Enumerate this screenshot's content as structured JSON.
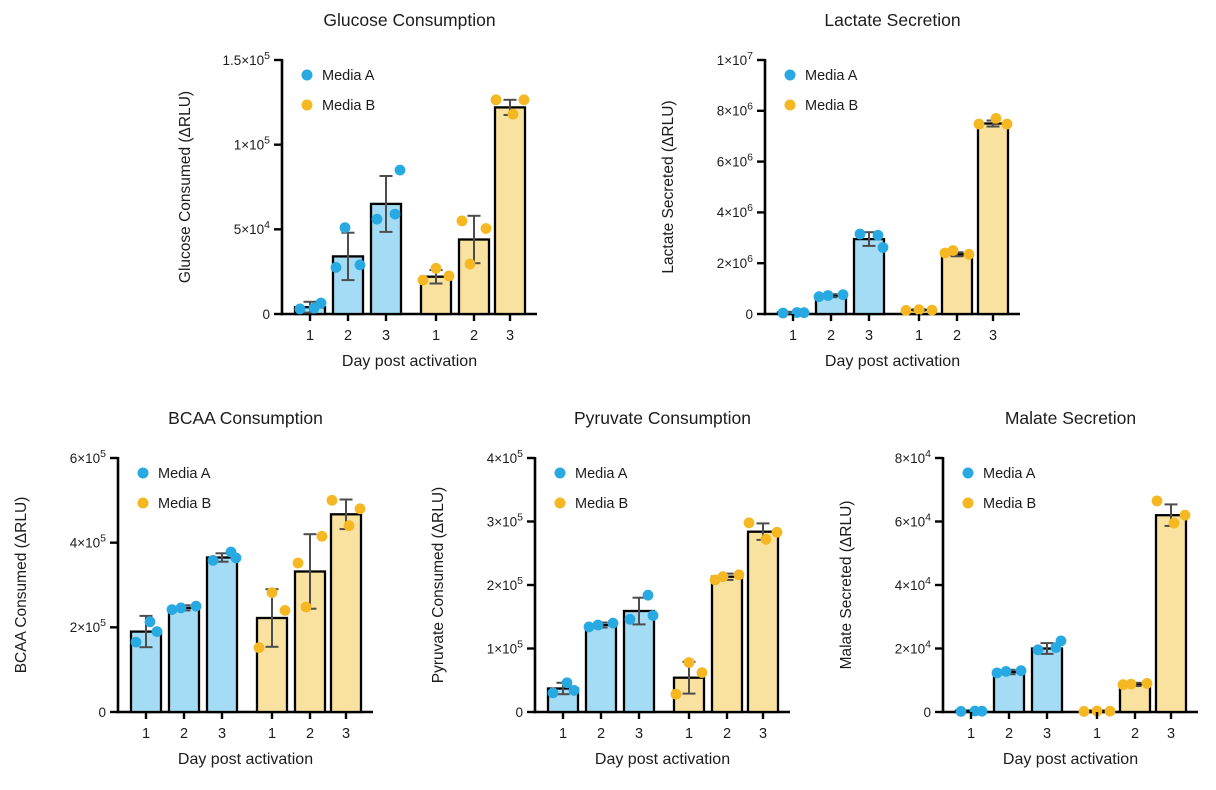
{
  "figure": {
    "background": "#FFFFFF",
    "x_axis_title": "Day post activation",
    "group_labels": [
      "Media A",
      "Media B"
    ],
    "days": [
      "1",
      "2",
      "3"
    ]
  },
  "colors": {
    "media_a_point": "#29A9E1",
    "media_a_fill": "#A5DCF5",
    "media_b_point": "#F5B722",
    "media_b_fill": "#F9E2A0",
    "axis": "#000000",
    "bar_stroke": "#000000",
    "error": "#4D4D4D",
    "text": "#1C1C1C"
  },
  "chart_data": [
    {
      "id": "glucose-consumption",
      "type": "bar",
      "title": "Glucose Consumption",
      "xlabel": "Day post activation",
      "ylabel": "Glucose Consumed (ΔRLU)",
      "ylim": [
        0,
        150000
      ],
      "grid": false,
      "legend_position": "top-left",
      "yticks": [
        {
          "v": 0,
          "label": "0"
        },
        {
          "v": 50000,
          "label": "5×10^4"
        },
        {
          "v": 100000,
          "label": "1×10^5"
        },
        {
          "v": 150000,
          "label": "1.5×10^5"
        }
      ],
      "categories": [
        "1",
        "2",
        "3"
      ],
      "series": [
        {
          "name": "Media A",
          "means": [
            4000,
            34000,
            65000
          ],
          "sd": [
            3200,
            14000,
            16500
          ],
          "points": [
            [
              3000,
              3500,
              6500
            ],
            [
              27500,
              29000,
              51000
            ],
            [
              56000,
              59000,
              85000
            ]
          ]
        },
        {
          "name": "Media B",
          "means": [
            22000,
            44000,
            122000
          ],
          "sd": [
            4000,
            14000,
            4500
          ],
          "points": [
            [
              20000,
              27000,
              22500
            ],
            [
              55000,
              50500,
              29500
            ],
            [
              126500,
              118000,
              126500
            ]
          ]
        }
      ]
    },
    {
      "id": "lactate-secretion",
      "type": "bar",
      "title": "Lactate Secretion",
      "xlabel": "Day post activation",
      "ylabel": "Lactate Secreted (ΔRLU)",
      "ylim": [
        0,
        10000000
      ],
      "grid": false,
      "legend_position": "top-left",
      "yticks": [
        {
          "v": 0,
          "label": "0"
        },
        {
          "v": 2000000,
          "label": "2×10^6"
        },
        {
          "v": 4000000,
          "label": "4×10^6"
        },
        {
          "v": 6000000,
          "label": "6×10^6"
        },
        {
          "v": 8000000,
          "label": "8×10^6"
        },
        {
          "v": 10000000,
          "label": "1×10^7"
        }
      ],
      "categories": [
        "1",
        "2",
        "3"
      ],
      "series": [
        {
          "name": "Media A",
          "means": [
            60000,
            720000,
            2950000
          ],
          "sd": [
            25000,
            60000,
            270000
          ],
          "points": [
            [
              40000,
              60000,
              50000
            ],
            [
              680000,
              760000,
              730000
            ],
            [
              3150000,
              3100000,
              2620000
            ]
          ]
        },
        {
          "name": "Media B",
          "means": [
            160000,
            2350000,
            7500000
          ],
          "sd": [
            30000,
            80000,
            120000
          ],
          "points": [
            [
              140000,
              170000,
              155000
            ],
            [
              2400000,
              2350000,
              2500000
            ],
            [
              7480000,
              7700000,
              7480000
            ]
          ]
        }
      ]
    },
    {
      "id": "bcaa-consumption",
      "type": "bar",
      "title": "BCAA Consumption",
      "xlabel": "Day post activation",
      "ylabel": "BCAA Consumed (ΔRLU)",
      "ylim": [
        0,
        600000
      ],
      "grid": false,
      "legend_position": "top-left",
      "yticks": [
        {
          "v": 0,
          "label": "0"
        },
        {
          "v": 200000,
          "label": "2×10^5"
        },
        {
          "v": 400000,
          "label": "4×10^5"
        },
        {
          "v": 600000,
          "label": "6×10^5"
        }
      ],
      "categories": [
        "1",
        "2",
        "3"
      ],
      "series": [
        {
          "name": "Media A",
          "means": [
            190000,
            246000,
            365000
          ],
          "sd": [
            37000,
            6000,
            10000
          ],
          "points": [
            [
              165000,
              213000,
              190000
            ],
            [
              242000,
              250000,
              246000
            ],
            [
              358000,
              378000,
              364000
            ]
          ]
        },
        {
          "name": "Media B",
          "means": [
            222000,
            332000,
            467000
          ],
          "sd": [
            68000,
            88000,
            35000
          ],
          "points": [
            [
              152000,
              282000,
              240000
            ],
            [
              352000,
              415000,
              248000
            ],
            [
              500000,
              440000,
              480000
            ]
          ]
        }
      ]
    },
    {
      "id": "pyruvate-consumption",
      "type": "bar",
      "title": "Pyruvate Consumption",
      "xlabel": "Day post activation",
      "ylabel": "Pyruvate Consumed (ΔRLU)",
      "ylim": [
        0,
        400000
      ],
      "grid": false,
      "legend_position": "top-left",
      "yticks": [
        {
          "v": 0,
          "label": "0"
        },
        {
          "v": 100000,
          "label": "1×10^5"
        },
        {
          "v": 200000,
          "label": "2×10^5"
        },
        {
          "v": 300000,
          "label": "3×10^5"
        },
        {
          "v": 400000,
          "label": "4×10^5"
        }
      ],
      "categories": [
        "1",
        "2",
        "3"
      ],
      "series": [
        {
          "name": "Media A",
          "means": [
            37000,
            137000,
            159000
          ],
          "sd": [
            9000,
            4000,
            21000
          ],
          "points": [
            [
              30000,
              46000,
              34000
            ],
            [
              134000,
              140000,
              137000
            ],
            [
              146000,
              184000,
              152000
            ]
          ]
        },
        {
          "name": "Media B",
          "means": [
            54000,
            213000,
            284000
          ],
          "sd": [
            25000,
            5000,
            13000
          ],
          "points": [
            [
              28000,
              78000,
              62000
            ],
            [
              208000,
              216000,
              213000
            ],
            [
              298000,
              272000,
              283000
            ]
          ]
        }
      ]
    },
    {
      "id": "malate-secretion",
      "type": "bar",
      "title": "Malate Secretion",
      "xlabel": "Day post activation",
      "ylabel": "Malate Secreted (ΔRLU)",
      "ylim": [
        0,
        80000
      ],
      "grid": false,
      "legend_position": "top-left",
      "yticks": [
        {
          "v": 0,
          "label": "0"
        },
        {
          "v": 20000,
          "label": "2×10^4"
        },
        {
          "v": 40000,
          "label": "4×10^4"
        },
        {
          "v": 60000,
          "label": "6×10^4"
        },
        {
          "v": 80000,
          "label": "8×10^4"
        }
      ],
      "categories": [
        "1",
        "2",
        "3"
      ],
      "series": [
        {
          "name": "Media A",
          "means": [
            400,
            12600,
            20000
          ],
          "sd": [
            0,
            700,
            1700
          ],
          "points": [
            [
              200,
              300,
              250
            ],
            [
              12300,
              13000,
              12800
            ],
            [
              19600,
              20300,
              22400
            ]
          ]
        },
        {
          "name": "Media B",
          "means": [
            400,
            8700,
            62000
          ],
          "sd": [
            0,
            500,
            3400
          ],
          "points": [
            [
              200,
              300,
              250
            ],
            [
              8600,
              9000,
              8800
            ],
            [
              66500,
              59500,
              62000
            ]
          ]
        }
      ]
    }
  ]
}
